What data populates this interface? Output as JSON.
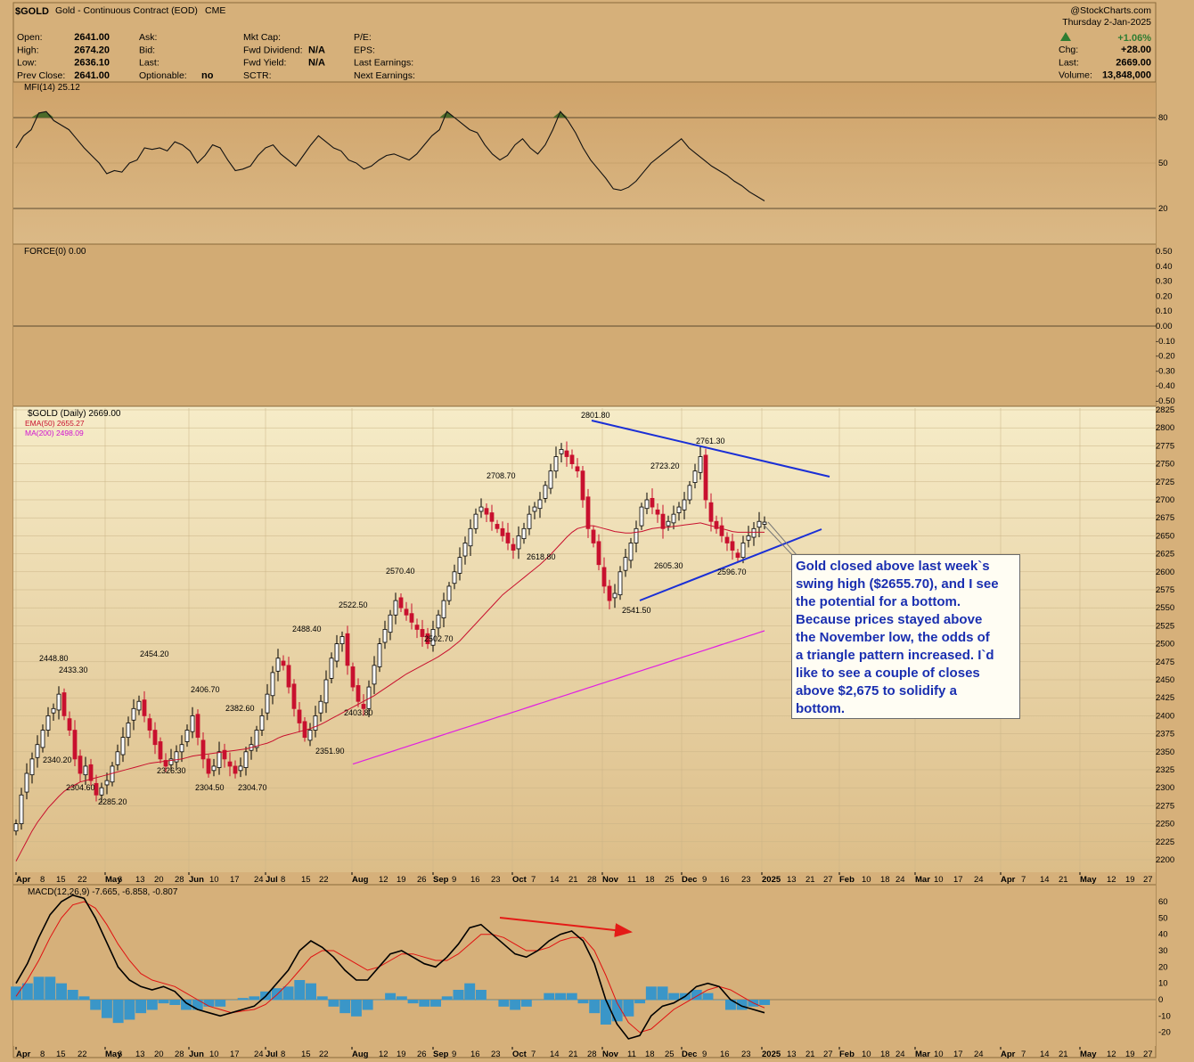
{
  "header": {
    "symbol": "$GOLD",
    "name": "Gold - Continuous Contract (EOD)",
    "exchange": "CME",
    "watermark": "@StockCharts.com",
    "col1": [
      {
        "label": "Open:",
        "value": "2641.00"
      },
      {
        "label": "High:",
        "value": "2674.20"
      },
      {
        "label": "Low:",
        "value": "2636.10"
      },
      {
        "label": "Prev Close:",
        "value": "2641.00"
      }
    ],
    "col2": [
      {
        "label": "Ask:",
        "value": ""
      },
      {
        "label": "Bid:",
        "value": ""
      },
      {
        "label": "Last:",
        "value": ""
      },
      {
        "label": "Optionable:",
        "value": "no"
      }
    ],
    "col3": [
      {
        "label": "Mkt Cap:",
        "value": ""
      },
      {
        "label": "Fwd Dividend:",
        "value": "N/A"
      },
      {
        "label": "Fwd Yield:",
        "value": "N/A"
      },
      {
        "label": "SCTR:",
        "value": ""
      }
    ],
    "col4": [
      {
        "label": "P/E:",
        "value": ""
      },
      {
        "label": "EPS:",
        "value": ""
      },
      {
        "label": "Last Earnings:",
        "value": ""
      },
      {
        "label": "Next Earnings:",
        "value": ""
      }
    ],
    "date": "Thursday  2-Jan-2025",
    "pct_change": "+1.06%",
    "right": [
      {
        "label": "Chg:",
        "value": "+28.00"
      },
      {
        "label": "Last:",
        "value": "2669.00"
      },
      {
        "label": "Volume:",
        "value": "13,848,000"
      }
    ]
  },
  "colors": {
    "background": "#d6b07a",
    "price_panel_top": "#f6ecc8",
    "up_candle": "#ffffff",
    "down_candle": "#c8102e",
    "ema50": "#c8102e",
    "ma200": "#e020e0",
    "trendline": "#1a2fd6",
    "macd_hist": "#3a96c8",
    "mfi_fill": "#4d6b2a",
    "note_text": "#1a2fb0",
    "divergence_arrow": "#e41b17"
  },
  "chart_data": [
    {
      "type": "line",
      "panel": "MFI",
      "title": "MFI(14) 25.12",
      "ylim": [
        0,
        100
      ],
      "yticks": [
        20,
        50,
        80
      ],
      "overbought": 80,
      "oversold": 20,
      "values": [
        60,
        68,
        72,
        83,
        84,
        78,
        75,
        72,
        66,
        60,
        55,
        50,
        43,
        45,
        44,
        50,
        52,
        60,
        59,
        60,
        58,
        64,
        62,
        58,
        50,
        55,
        62,
        60,
        52,
        45,
        46,
        48,
        55,
        60,
        62,
        56,
        52,
        48,
        55,
        62,
        68,
        64,
        60,
        58,
        52,
        50,
        46,
        48,
        52,
        55,
        56,
        54,
        52,
        56,
        62,
        68,
        72,
        84,
        80,
        76,
        72,
        70,
        62,
        56,
        52,
        55,
        62,
        66,
        60,
        56,
        62,
        72,
        84,
        78,
        70,
        60,
        52,
        46,
        40,
        33,
        32,
        34,
        38,
        44,
        50,
        54,
        58,
        62,
        66,
        60,
        56,
        52,
        48,
        45,
        42,
        38,
        35,
        31,
        28,
        25
      ]
    },
    {
      "type": "line",
      "panel": "Force Index",
      "title": "FORCE(0) 0.00",
      "ylim": [
        -0.5,
        0.5
      ],
      "yticks": [
        "0.50",
        "0.40",
        "0.30",
        "0.20",
        "0.10",
        "0.00",
        "-0.10",
        "-0.20",
        "-0.30",
        "-0.40",
        "-0.50"
      ],
      "values": [
        0
      ]
    },
    {
      "type": "candlestick",
      "panel": "Price",
      "title": "$GOLD (Daily) 2669.00",
      "legend": [
        "EMA(50) 2655.27",
        "MA(200) 2498.09"
      ],
      "ylim": [
        2190,
        2825
      ],
      "yticks": [
        2825,
        2800,
        2775,
        2750,
        2725,
        2700,
        2675,
        2650,
        2625,
        2600,
        2575,
        2550,
        2525,
        2500,
        2475,
        2450,
        2425,
        2400,
        2375,
        2350,
        2325,
        2300,
        2275,
        2250,
        2225,
        2200
      ],
      "x_labels": [
        "Apr",
        "8",
        "15",
        "22",
        "May",
        "6",
        "13",
        "20",
        "28",
        "Jun",
        "10",
        "17",
        "24",
        "Jul",
        "8",
        "15",
        "22",
        "Aug",
        "12",
        "19",
        "26",
        "Sep",
        "9",
        "16",
        "23",
        "Oct",
        "7",
        "14",
        "21",
        "28",
        "Nov",
        "11",
        "18",
        "25",
        "Dec",
        "9",
        "16",
        "23",
        "2025",
        "13",
        "21",
        "27",
        "Feb",
        "10",
        "18",
        "24",
        "Mar",
        "10",
        "17",
        "24",
        "Apr",
        "7",
        "14",
        "21",
        "May",
        "12",
        "19",
        "27"
      ],
      "annotations": [
        {
          "label": "2448.80",
          "value": 2448.8
        },
        {
          "label": "2433.30",
          "value": 2433.3
        },
        {
          "label": "2340.20",
          "value": 2340.2
        },
        {
          "label": "2304.60",
          "value": 2304.6
        },
        {
          "label": "2285.20",
          "value": 2285.2
        },
        {
          "label": "2454.20",
          "value": 2454.2
        },
        {
          "label": "2326.30",
          "value": 2326.3
        },
        {
          "label": "2406.70",
          "value": 2406.7
        },
        {
          "label": "2304.50",
          "value": 2304.5
        },
        {
          "label": "2382.60",
          "value": 2382.6
        },
        {
          "label": "2304.70",
          "value": 2304.7
        },
        {
          "label": "2488.40",
          "value": 2488.4
        },
        {
          "label": "2351.90",
          "value": 2351.9
        },
        {
          "label": "2522.50",
          "value": 2522.5
        },
        {
          "label": "2403.80",
          "value": 2403.8
        },
        {
          "label": "2570.40",
          "value": 2570.4
        },
        {
          "label": "2502.70",
          "value": 2502.7
        },
        {
          "label": "2708.70",
          "value": 2708.7
        },
        {
          "label": "2618.80",
          "value": 2618.8
        },
        {
          "label": "2801.80",
          "value": 2801.8
        },
        {
          "label": "2723.20",
          "value": 2723.2
        },
        {
          "label": "2541.50",
          "value": 2541.5
        },
        {
          "label": "2605.30",
          "value": 2605.3
        },
        {
          "label": "2761.30",
          "value": 2761.3
        },
        {
          "label": "2596.70",
          "value": 2596.7
        }
      ],
      "close": [
        2250,
        2290,
        2320,
        2340,
        2360,
        2380,
        2400,
        2410,
        2430,
        2400,
        2380,
        2340,
        2320,
        2330,
        2310,
        2290,
        2300,
        2310,
        2330,
        2350,
        2370,
        2390,
        2410,
        2420,
        2400,
        2380,
        2360,
        2340,
        2330,
        2340,
        2350,
        2360,
        2380,
        2400,
        2370,
        2340,
        2320,
        2330,
        2350,
        2340,
        2330,
        2320,
        2330,
        2350,
        2360,
        2380,
        2400,
        2430,
        2460,
        2480,
        2470,
        2440,
        2410,
        2390,
        2370,
        2380,
        2400,
        2420,
        2450,
        2480,
        2500,
        2510,
        2470,
        2440,
        2420,
        2410,
        2440,
        2470,
        2500,
        2520,
        2540,
        2560,
        2550,
        2540,
        2530,
        2520,
        2510,
        2500,
        2520,
        2540,
        2560,
        2580,
        2600,
        2620,
        2640,
        2660,
        2680,
        2690,
        2680,
        2670,
        2660,
        2650,
        2640,
        2630,
        2650,
        2660,
        2680,
        2690,
        2700,
        2720,
        2740,
        2760,
        2770,
        2760,
        2750,
        2740,
        2700,
        2660,
        2640,
        2610,
        2580,
        2560,
        2570,
        2600,
        2620,
        2640,
        2660,
        2690,
        2700,
        2690,
        2680,
        2660,
        2670,
        2680,
        2690,
        2700,
        2720,
        2740,
        2760,
        2700,
        2670,
        2660,
        2650,
        2640,
        2630,
        2620,
        2640,
        2650,
        2660,
        2670,
        2669
      ],
      "ema50": [
        2198,
        2212,
        2226,
        2240,
        2252,
        2262,
        2272,
        2280,
        2288,
        2295,
        2300,
        2304,
        2308,
        2310,
        2312,
        2314,
        2316,
        2318,
        2320,
        2322,
        2324,
        2326,
        2328,
        2330,
        2332,
        2334,
        2335,
        2336,
        2337,
        2338,
        2339,
        2340,
        2342,
        2344,
        2345,
        2346,
        2347,
        2348,
        2349,
        2350,
        2351,
        2352,
        2353,
        2354,
        2356,
        2358,
        2360,
        2362,
        2365,
        2369,
        2372,
        2374,
        2376,
        2378,
        2380,
        2382,
        2385,
        2388,
        2392,
        2396,
        2400,
        2404,
        2408,
        2412,
        2416,
        2420,
        2424,
        2428,
        2433,
        2438,
        2443,
        2448,
        2453,
        2458,
        2462,
        2466,
        2470,
        2474,
        2478,
        2482,
        2487,
        2492,
        2498,
        2504,
        2512,
        2520,
        2528,
        2536,
        2544,
        2552,
        2560,
        2568,
        2574,
        2580,
        2586,
        2592,
        2598,
        2604,
        2610,
        2617,
        2624,
        2632,
        2640,
        2648,
        2655,
        2660,
        2662,
        2664,
        2664,
        2662,
        2660,
        2658,
        2656,
        2655,
        2654,
        2654,
        2655,
        2656,
        2658,
        2660,
        2661,
        2662,
        2662,
        2663,
        2664,
        2665,
        2666,
        2667,
        2668,
        2666,
        2664,
        2662,
        2660,
        2658,
        2656,
        2655,
        2655,
        2655,
        2655,
        2655,
        2655
      ],
      "ma200": [
        2190,
        2192,
        2194,
        2196,
        2198,
        2200,
        2202,
        2204,
        2206,
        2208,
        2210,
        2212,
        2214,
        2216,
        2218,
        2220,
        2222,
        2224,
        2226,
        2228,
        2230,
        2232,
        2234,
        2236,
        2238,
        2240,
        2242,
        2244,
        2246,
        2248,
        2250,
        2252,
        2254,
        2256,
        2258,
        2260,
        2262,
        2264,
        2266,
        2268,
        2270,
        2272,
        2274,
        2276,
        2278,
        2280,
        2282,
        2284,
        2286,
        2288,
        2290,
        2292,
        2294,
        2296,
        2298,
        2300,
        2302,
        2304,
        2306,
        2308,
        2310,
        2312,
        2314,
        2316,
        2318,
        2320,
        2322,
        2324,
        2326,
        2328,
        2330,
        2332,
        2334,
        2336,
        2338,
        2340,
        2342,
        2344,
        2346,
        2348,
        2350,
        2352,
        2354,
        2356,
        2358,
        2360,
        2362,
        2364,
        2366,
        2368,
        2370,
        2372,
        2374,
        2376,
        2378,
        2380,
        2382,
        2384,
        2386,
        2388,
        2390,
        2392,
        2394,
        2396,
        2398,
        2400,
        2402,
        2404,
        2406,
        2408,
        2410,
        2412,
        2414,
        2416,
        2418,
        2420,
        2422,
        2424,
        2426,
        2428,
        2430,
        2432,
        2434,
        2436,
        2438,
        2440,
        2442,
        2444,
        2446,
        2448,
        2450,
        2452,
        2454,
        2456,
        2458,
        2460,
        2462,
        2464,
        2466,
        2468,
        2498
      ]
    },
    {
      "type": "line",
      "panel": "MACD",
      "title": "MACD(12,26,9) -7.665, -6.858, -0.807",
      "ylim": [
        -25,
        65
      ],
      "yticks": [
        60,
        50,
        40,
        30,
        20,
        10,
        0,
        -10,
        -20
      ],
      "macd": [
        10,
        22,
        38,
        52,
        60,
        64,
        62,
        50,
        35,
        20,
        12,
        8,
        6,
        8,
        5,
        -2,
        -6,
        -8,
        -10,
        -8,
        -6,
        -4,
        2,
        10,
        18,
        30,
        36,
        32,
        26,
        18,
        12,
        12,
        20,
        28,
        30,
        26,
        22,
        20,
        26,
        34,
        44,
        46,
        40,
        34,
        28,
        26,
        30,
        36,
        40,
        42,
        36,
        22,
        0,
        -15,
        -24,
        -22,
        -10,
        -4,
        -2,
        2,
        8,
        10,
        8,
        0,
        -4,
        -6,
        -8
      ],
      "signal": [
        2,
        12,
        24,
        38,
        50,
        58,
        60,
        56,
        46,
        34,
        24,
        16,
        12,
        10,
        8,
        4,
        0,
        -4,
        -6,
        -8,
        -7,
        -6,
        -3,
        3,
        10,
        18,
        26,
        30,
        30,
        26,
        22,
        18,
        20,
        24,
        28,
        28,
        26,
        24,
        24,
        28,
        34,
        40,
        40,
        38,
        34,
        30,
        30,
        32,
        36,
        38,
        38,
        30,
        15,
        -2,
        -14,
        -20,
        -18,
        -12,
        -6,
        -2,
        2,
        6,
        8,
        6,
        2,
        -2,
        -5
      ],
      "histogram": [
        8,
        10,
        14,
        14,
        10,
        6,
        2,
        -6,
        -11,
        -14,
        -12,
        -8,
        -6,
        -2,
        -3,
        -6,
        -6,
        -4,
        -4,
        0,
        1,
        2,
        5,
        7,
        8,
        12,
        10,
        2,
        -4,
        -8,
        -10,
        -6,
        0,
        4,
        2,
        -2,
        -4,
        -4,
        2,
        6,
        10,
        6,
        0,
        -4,
        -6,
        -4,
        0,
        4,
        4,
        4,
        -2,
        -8,
        -15,
        -13,
        -10,
        -2,
        8,
        8,
        4,
        4,
        6,
        4,
        0,
        -6,
        -6,
        -4,
        -3
      ]
    }
  ],
  "labels": {
    "price_points": [
      {
        "text": "2448.80"
      },
      {
        "text": "2433.30"
      },
      {
        "text": "2340.20"
      },
      {
        "text": "2304.60"
      },
      {
        "text": "2285.20"
      },
      {
        "text": "2454.20"
      },
      {
        "text": "2326.30"
      },
      {
        "text": "2406.70"
      },
      {
        "text": "2304.50"
      },
      {
        "text": "2382.60"
      },
      {
        "text": "2304.70"
      },
      {
        "text": "2488.40"
      },
      {
        "text": "2351.90"
      },
      {
        "text": "2522.50"
      },
      {
        "text": "2403.80"
      },
      {
        "text": "2570.40"
      },
      {
        "text": "2502.70"
      },
      {
        "text": "2708.70"
      },
      {
        "text": "2618.80"
      },
      {
        "text": "2801.80"
      },
      {
        "text": "2723.20"
      },
      {
        "text": "2541.50"
      },
      {
        "text": "2605.30"
      },
      {
        "text": "2761.30"
      },
      {
        "text": "2596.70"
      }
    ]
  },
  "note": {
    "lines": [
      "Gold closed above last week`s",
      "swing high ($2655.70), and I see",
      "the potential for a bottom.",
      "Because prices stayed above",
      "the November low, the odds of",
      "a triangle pattern increased. I`d",
      "like to see a couple of closes",
      "above $2,675 to solidify a",
      "bottom."
    ]
  }
}
